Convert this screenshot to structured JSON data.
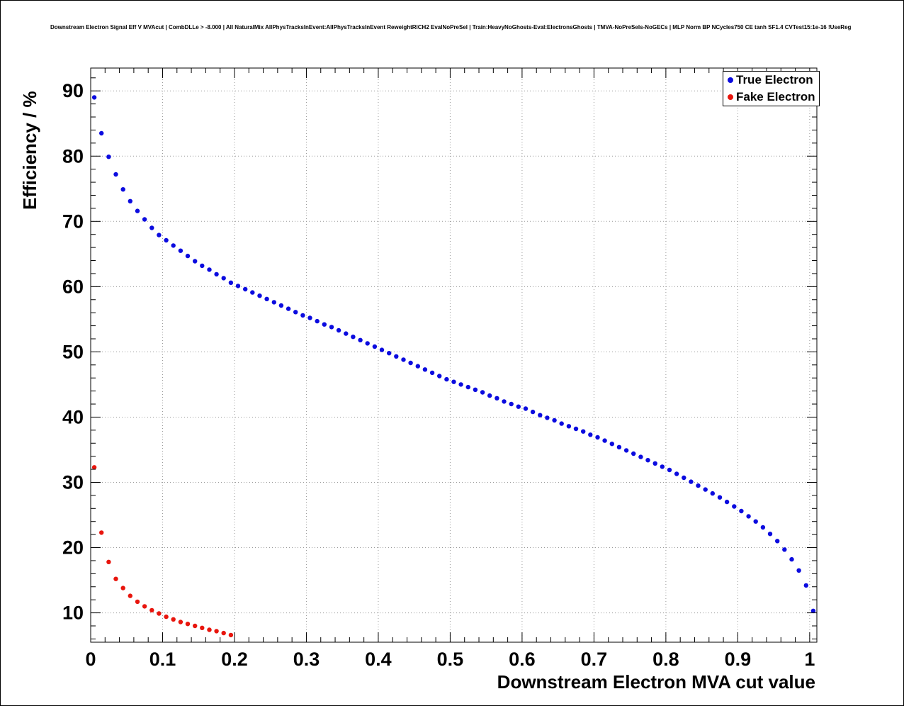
{
  "title": "Downstream Electron Signal Eff V MVAcut | CombDLLe > -8.000 | All NaturalMix AllPhysTracksInEvent:AllPhysTracksInEvent ReweightRICH2 EvalNoPreSel | Train:HeavyNoGhosts-Eval:ElectronsGhosts | TMVA-NoPreSels-NoGECs | MLP Norm BP NCycles750 CE tanh SF1.4 CVTest15:1e-16 !UseReg",
  "legend": {
    "entries": [
      {
        "label": "True Electron",
        "color": "#0b0bdf"
      },
      {
        "label": "Fake Electron",
        "color": "#e8150d"
      }
    ]
  },
  "colors": {
    "grid": "#999999",
    "frame": "#000000",
    "background": "#ffffff"
  },
  "chart_data": {
    "type": "scatter",
    "title": "Downstream Electron Signal Eff V MVAcut",
    "xlabel": "Downstream Electron MVA cut value",
    "ylabel": "Efficiency / %",
    "xlim": [
      0,
      1.01
    ],
    "ylim": [
      5.5,
      93.5
    ],
    "grid": true,
    "legend_position": "top-right",
    "x_ticks": {
      "values": [
        0,
        0.1,
        0.2,
        0.3,
        0.4,
        0.5,
        0.6,
        0.7,
        0.8,
        0.9,
        1.0
      ],
      "labels": [
        "0",
        "0.1",
        "0.2",
        "0.3",
        "0.4",
        "0.5",
        "0.6",
        "0.7",
        "0.8",
        "0.9",
        "1"
      ]
    },
    "y_ticks": {
      "values": [
        10,
        20,
        30,
        40,
        50,
        60,
        70,
        80,
        90
      ],
      "labels": [
        "10",
        "20",
        "30",
        "40",
        "50",
        "60",
        "70",
        "80",
        "90"
      ]
    },
    "x_minor_step": 0.02,
    "y_minor_step": 2,
    "series": [
      {
        "name": "True Electron",
        "color": "#0b0bdf",
        "x": [
          0.005,
          0.015,
          0.025,
          0.035,
          0.045,
          0.055,
          0.065,
          0.075,
          0.085,
          0.095,
          0.105,
          0.115,
          0.125,
          0.135,
          0.145,
          0.155,
          0.165,
          0.175,
          0.185,
          0.195,
          0.205,
          0.215,
          0.225,
          0.235,
          0.245,
          0.255,
          0.265,
          0.275,
          0.285,
          0.295,
          0.305,
          0.315,
          0.325,
          0.335,
          0.345,
          0.355,
          0.365,
          0.375,
          0.385,
          0.395,
          0.405,
          0.415,
          0.425,
          0.435,
          0.445,
          0.455,
          0.465,
          0.475,
          0.485,
          0.495,
          0.505,
          0.515,
          0.525,
          0.535,
          0.545,
          0.555,
          0.565,
          0.575,
          0.585,
          0.595,
          0.605,
          0.615,
          0.625,
          0.635,
          0.645,
          0.655,
          0.665,
          0.675,
          0.685,
          0.695,
          0.705,
          0.715,
          0.725,
          0.735,
          0.745,
          0.755,
          0.765,
          0.775,
          0.785,
          0.795,
          0.805,
          0.815,
          0.825,
          0.835,
          0.845,
          0.855,
          0.865,
          0.875,
          0.885,
          0.895,
          0.905,
          0.915,
          0.925,
          0.935,
          0.945,
          0.955,
          0.965,
          0.975,
          0.985,
          0.995,
          1.005
        ],
        "y": [
          89.0,
          83.5,
          79.9,
          77.2,
          74.9,
          73.1,
          71.6,
          70.3,
          69.0,
          67.9,
          67.1,
          66.3,
          65.5,
          64.7,
          63.9,
          63.2,
          62.6,
          61.9,
          61.3,
          60.6,
          60.1,
          59.6,
          59.1,
          58.6,
          58.1,
          57.6,
          57.1,
          56.6,
          56.1,
          55.6,
          55.2,
          54.7,
          54.2,
          53.8,
          53.3,
          52.8,
          52.3,
          51.8,
          51.3,
          50.8,
          50.3,
          49.8,
          49.3,
          48.8,
          48.3,
          47.8,
          47.3,
          46.8,
          46.3,
          45.8,
          45.4,
          45.0,
          44.6,
          44.2,
          43.8,
          43.3,
          42.9,
          42.4,
          42.0,
          41.6,
          41.3,
          40.8,
          40.3,
          39.9,
          39.5,
          39.0,
          38.6,
          38.2,
          37.8,
          37.3,
          36.9,
          36.4,
          35.9,
          35.4,
          34.9,
          34.4,
          33.9,
          33.4,
          32.9,
          32.4,
          31.9,
          31.3,
          30.7,
          30.1,
          29.5,
          28.9,
          28.3,
          27.7,
          27.0,
          26.3,
          25.6,
          24.8,
          24.0,
          23.1,
          22.1,
          21.0,
          19.7,
          18.2,
          16.5,
          14.2,
          10.3
        ]
      },
      {
        "name": "Fake Electron",
        "color": "#e8150d",
        "x": [
          0.005,
          0.015,
          0.025,
          0.035,
          0.045,
          0.055,
          0.065,
          0.075,
          0.085,
          0.095,
          0.105,
          0.115,
          0.125,
          0.135,
          0.145,
          0.155,
          0.165,
          0.175,
          0.185,
          0.195
        ],
        "y": [
          32.3,
          22.3,
          17.8,
          15.2,
          13.8,
          12.6,
          11.7,
          11.0,
          10.4,
          9.9,
          9.4,
          9.0,
          8.6,
          8.3,
          8.0,
          7.7,
          7.4,
          7.2,
          6.9,
          6.6
        ]
      }
    ]
  }
}
